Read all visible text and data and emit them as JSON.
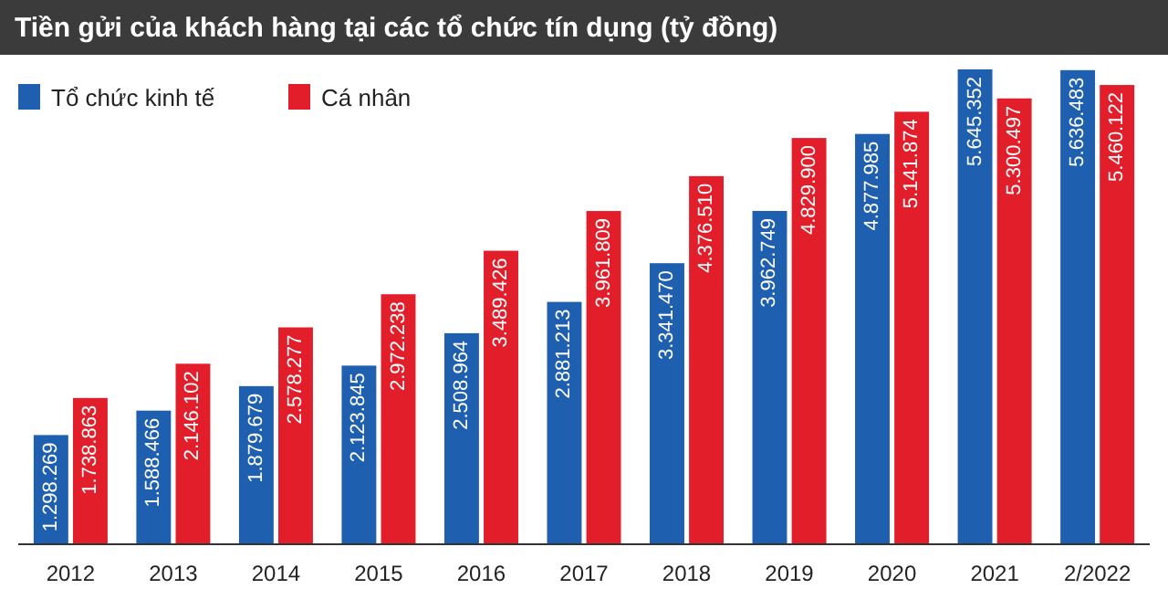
{
  "chart_data": {
    "type": "bar",
    "title": "Tiền gửi của khách hàng tại các tổ chức tín dụng (tỷ đồng)",
    "categories": [
      "2012",
      "2013",
      "2014",
      "2015",
      "2016",
      "2017",
      "2018",
      "2019",
      "2020",
      "2021",
      "2/2022"
    ],
    "series": [
      {
        "name": "Tổ chức kinh tế",
        "color": "#1f5fb0",
        "values": [
          1298269,
          1588466,
          1879679,
          2123845,
          2508964,
          2881213,
          3341470,
          3962749,
          4877985,
          5645352,
          5636483
        ],
        "value_labels": [
          "1.298.269",
          "1.588.466",
          "1.879.679",
          "2.123.845",
          "2.508.964",
          "2.881.213",
          "3.341.470",
          "3.962.749",
          "4.877.985",
          "5.645.352",
          "5.636.483"
        ]
      },
      {
        "name": "Cá nhân",
        "color": "#e31e2b",
        "values": [
          1738863,
          2146102,
          2578277,
          2972238,
          3489426,
          3961809,
          4376510,
          4829900,
          5141874,
          5300497,
          5460122
        ],
        "value_labels": [
          "1.738.863",
          "2.146.102",
          "2.578.277",
          "2.972.238",
          "3.489.426",
          "3.961.809",
          "4.376.510",
          "4.829.900",
          "5.141.874",
          "5.300.497",
          "5.460.122"
        ]
      }
    ],
    "legend": "top left"
  }
}
